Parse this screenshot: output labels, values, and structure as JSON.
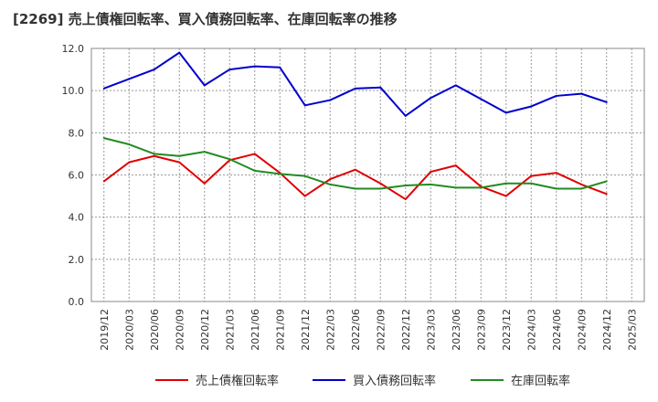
{
  "chart_data": {
    "type": "line",
    "title": "[2269]  売上債権回転率、買入債務回転率、在庫回転率の推移",
    "xlabel": "",
    "ylabel": "",
    "ylim": [
      0,
      12
    ],
    "y_ticks": [
      "0.0",
      "2.0",
      "4.0",
      "6.0",
      "8.0",
      "10.0",
      "12.0"
    ],
    "x_ticks": [
      "2019/12",
      "2020/03",
      "2020/06",
      "2020/09",
      "2020/12",
      "2021/03",
      "2021/06",
      "2021/09",
      "2021/12",
      "2022/03",
      "2022/06",
      "2022/09",
      "2022/12",
      "2023/03",
      "2023/06",
      "2023/09",
      "2023/12",
      "2024/03",
      "2024/06",
      "2024/09",
      "2024/12",
      "2025/03"
    ],
    "grid": true,
    "legend_position": "bottom",
    "series": [
      {
        "name": "売上債権回転率",
        "color": "#e00000",
        "values": [
          5.7,
          6.6,
          6.9,
          6.6,
          5.6,
          6.7,
          7.0,
          6.1,
          5.0,
          5.8,
          6.25,
          5.6,
          4.85,
          6.15,
          6.45,
          5.45,
          5.0,
          5.95,
          6.1,
          5.55,
          5.1
        ]
      },
      {
        "name": "買入債務回転率",
        "color": "#0000cc",
        "values": [
          10.1,
          10.55,
          11.0,
          11.8,
          10.25,
          11.0,
          11.15,
          11.1,
          9.3,
          9.55,
          10.1,
          10.15,
          8.8,
          9.65,
          10.25,
          9.6,
          8.95,
          9.25,
          9.75,
          9.85,
          9.45
        ]
      },
      {
        "name": "在庫回転率",
        "color": "#228b22",
        "values": [
          7.75,
          7.45,
          7.0,
          6.9,
          7.1,
          6.75,
          6.2,
          6.05,
          5.95,
          5.55,
          5.35,
          5.35,
          5.5,
          5.55,
          5.4,
          5.4,
          5.6,
          5.6,
          5.35,
          5.35,
          5.7
        ]
      }
    ]
  }
}
